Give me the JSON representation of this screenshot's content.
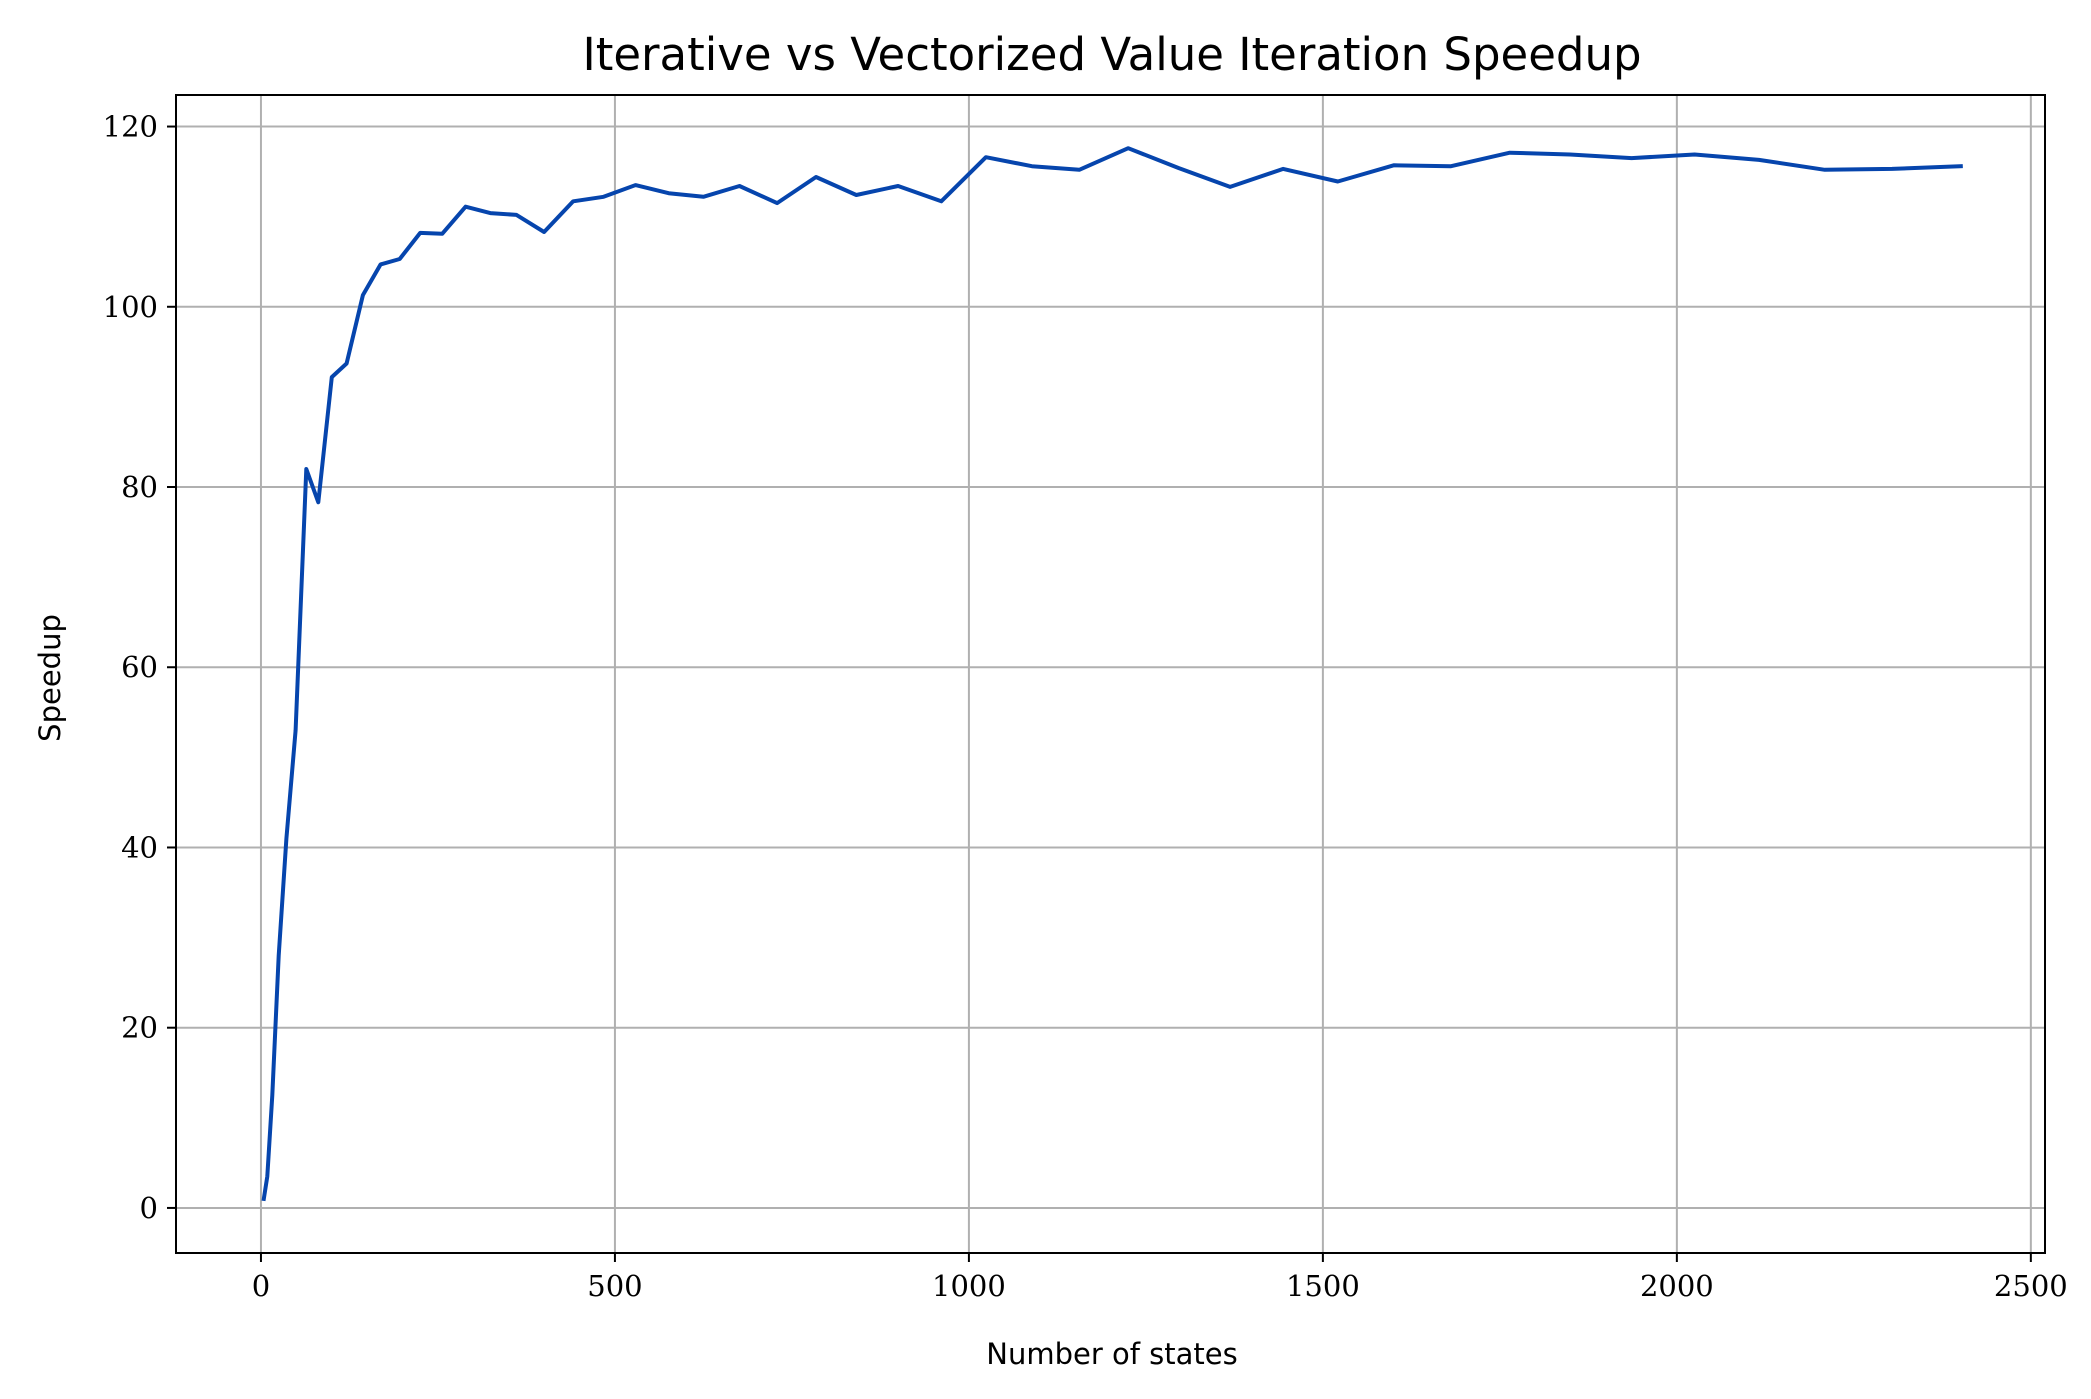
{
  "chart_data": {
    "type": "line",
    "title": "Iterative vs Vectorized Value Iteration Speedup",
    "xlabel": "Number of states",
    "ylabel": "Speedup",
    "xlim": [
      -120,
      2520
    ],
    "ylim": [
      -5,
      123.5
    ],
    "xticks": [
      0,
      500,
      1000,
      1500,
      2000,
      2500
    ],
    "yticks": [
      0,
      20,
      40,
      60,
      80,
      100,
      120
    ],
    "grid": true,
    "line_color": "#0645ad",
    "grid_color": "#b0b0b0",
    "series": [
      {
        "x": [
          4,
          9,
          16,
          25,
          36,
          49,
          64,
          81,
          100,
          121,
          144,
          169,
          196,
          225,
          256,
          289,
          324,
          361,
          400,
          441,
          484,
          529,
          576,
          625,
          676,
          729,
          784,
          841,
          900,
          961,
          1024,
          1089,
          1156,
          1225,
          1296,
          1369,
          1444,
          1521,
          1600,
          1681,
          1764,
          1849,
          1936,
          2025,
          2116,
          2209,
          2304,
          2401
        ],
        "y": [
          1.0,
          3.5,
          12.5,
          28.0,
          41.0,
          53.0,
          82.0,
          78.3,
          92.2,
          93.7,
          101.3,
          104.7,
          105.3,
          108.2,
          108.1,
          111.1,
          110.4,
          110.2,
          108.3,
          111.7,
          112.2,
          113.5,
          112.6,
          112.2,
          113.4,
          111.5,
          114.4,
          112.4,
          113.4,
          111.7,
          116.6,
          115.6,
          115.2,
          117.6,
          115.4,
          113.3,
          115.3,
          113.9,
          115.7,
          115.6,
          117.1,
          116.9,
          116.5,
          116.9,
          116.3,
          115.2,
          115.3,
          115.6
        ]
      }
    ]
  }
}
